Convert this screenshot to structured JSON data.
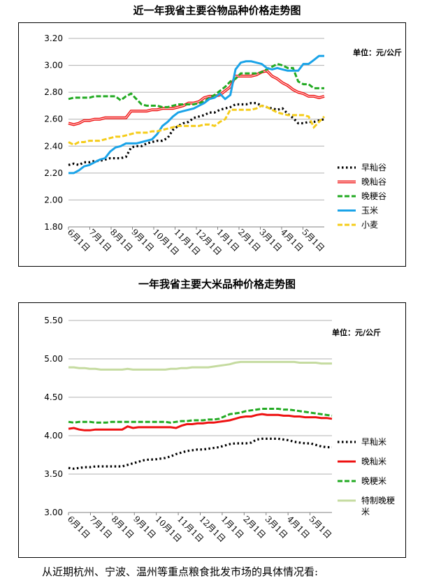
{
  "chart_data": [
    {
      "type": "line",
      "title": "近一年我省主要谷物品种价格走势图",
      "unit_label": "单位：元/公斤",
      "ylim": [
        1.8,
        3.2
      ],
      "yticks": [
        "3.20",
        "3.00",
        "2.80",
        "2.60",
        "2.40",
        "2.20",
        "2.00",
        "1.80"
      ],
      "x_labels": [
        "6月1日",
        "7月1日",
        "8月1日",
        "9月1日",
        "10月1日",
        "11月1日",
        "12月1日",
        "1月1日",
        "2月1日",
        "3月1日",
        "4月1日",
        "5月1日"
      ],
      "grid": true,
      "legend_position": "right",
      "series": [
        {
          "name": "早籼谷",
          "color": "#000000",
          "style": "dotted",
          "values": [
            2.26,
            2.27,
            2.26,
            2.28,
            2.28,
            2.29,
            2.29,
            2.3,
            2.31,
            2.31,
            2.31,
            2.32,
            2.39,
            2.4,
            2.4,
            2.42,
            2.43,
            2.44,
            2.44,
            2.46,
            2.52,
            2.55,
            2.57,
            2.58,
            2.61,
            2.62,
            2.63,
            2.65,
            2.65,
            2.67,
            2.68,
            2.69,
            2.71,
            2.71,
            2.71,
            2.72,
            2.72,
            2.7,
            2.69,
            2.68,
            2.67,
            2.68,
            2.64,
            2.61,
            2.57,
            2.57,
            2.58,
            2.58,
            2.59,
            2.6
          ]
        },
        {
          "name": "晚籼谷",
          "color": "#ee1111",
          "style": "solid-double",
          "values": [
            2.57,
            2.56,
            2.57,
            2.59,
            2.59,
            2.6,
            2.6,
            2.61,
            2.61,
            2.61,
            2.61,
            2.61,
            2.66,
            2.66,
            2.66,
            2.66,
            2.67,
            2.67,
            2.68,
            2.68,
            2.68,
            2.69,
            2.7,
            2.72,
            2.72,
            2.73,
            2.76,
            2.77,
            2.77,
            2.78,
            2.81,
            2.84,
            2.92,
            2.92,
            2.92,
            2.92,
            2.93,
            2.95,
            2.96,
            2.92,
            2.9,
            2.87,
            2.85,
            2.82,
            2.8,
            2.79,
            2.77,
            2.77,
            2.76,
            2.77
          ]
        },
        {
          "name": "晚粳谷",
          "color": "#22aa22",
          "style": "dashed",
          "values": [
            2.75,
            2.76,
            2.76,
            2.76,
            2.76,
            2.77,
            2.77,
            2.77,
            2.77,
            2.77,
            2.74,
            2.77,
            2.79,
            2.75,
            2.71,
            2.7,
            2.7,
            2.7,
            2.69,
            2.69,
            2.7,
            2.71,
            2.71,
            2.71,
            2.71,
            2.72,
            2.73,
            2.76,
            2.78,
            2.81,
            2.84,
            2.88,
            2.9,
            2.94,
            2.94,
            2.94,
            2.94,
            2.95,
            2.97,
            2.99,
            3.01,
            3.0,
            2.98,
            2.98,
            2.88,
            2.86,
            2.86,
            2.83,
            2.83,
            2.83
          ]
        },
        {
          "name": "玉米",
          "color": "#1aa3e8",
          "style": "solid",
          "values": [
            2.2,
            2.2,
            2.22,
            2.25,
            2.26,
            2.28,
            2.3,
            2.31,
            2.36,
            2.39,
            2.4,
            2.42,
            2.42,
            2.42,
            2.43,
            2.44,
            2.45,
            2.49,
            2.55,
            2.58,
            2.62,
            2.65,
            2.66,
            2.67,
            2.68,
            2.7,
            2.72,
            2.75,
            2.76,
            2.79,
            2.75,
            2.78,
            2.97,
            3.02,
            3.03,
            3.03,
            3.02,
            3.01,
            2.98,
            2.97,
            2.98,
            2.97,
            2.96,
            2.96,
            2.96,
            3.01,
            3.01,
            3.04,
            3.07,
            3.07
          ]
        },
        {
          "name": "小麦",
          "color": "#f5cc1a",
          "style": "dashed",
          "values": [
            2.43,
            2.41,
            2.43,
            2.43,
            2.44,
            2.44,
            2.44,
            2.45,
            2.46,
            2.47,
            2.47,
            2.48,
            2.49,
            2.5,
            2.5,
            2.5,
            2.51,
            2.51,
            2.52,
            2.53,
            2.54,
            2.55,
            2.55,
            2.55,
            2.55,
            2.55,
            2.56,
            2.56,
            2.55,
            2.58,
            2.6,
            2.67,
            2.67,
            2.67,
            2.67,
            2.67,
            2.68,
            2.7,
            2.69,
            2.67,
            2.65,
            2.64,
            2.63,
            2.63,
            2.63,
            2.63,
            2.62,
            2.54,
            2.58,
            2.62
          ]
        }
      ]
    },
    {
      "type": "line",
      "title": "一年我省主要大米品种价格走势图",
      "unit_label": "单位：元/公斤",
      "ylim": [
        3.0,
        5.5
      ],
      "yticks": [
        "5.50",
        "5.00",
        "4.50",
        "4.00",
        "3.50",
        "3.00"
      ],
      "x_labels": [
        "6月1日",
        "7月1日",
        "8月1日",
        "9月1日",
        "10月1日",
        "11月1日",
        "12月1日",
        "1月1日",
        "2月1日",
        "3月1日",
        "4月1日",
        "5月1日"
      ],
      "grid": true,
      "legend_position": "right",
      "series": [
        {
          "name": "早籼米",
          "color": "#000000",
          "style": "dotted",
          "values": [
            3.58,
            3.57,
            3.58,
            3.59,
            3.59,
            3.6,
            3.6,
            3.6,
            3.6,
            3.6,
            3.6,
            3.62,
            3.64,
            3.66,
            3.68,
            3.69,
            3.69,
            3.7,
            3.71,
            3.73,
            3.76,
            3.78,
            3.8,
            3.81,
            3.82,
            3.82,
            3.83,
            3.84,
            3.85,
            3.87,
            3.89,
            3.9,
            3.9,
            3.9,
            3.91,
            3.95,
            3.96,
            3.96,
            3.96,
            3.96,
            3.95,
            3.94,
            3.92,
            3.91,
            3.9,
            3.9,
            3.88,
            3.86,
            3.85,
            3.85
          ]
        },
        {
          "name": "晚籼米",
          "color": "#ee1111",
          "style": "solid",
          "values": [
            4.09,
            4.1,
            4.08,
            4.07,
            4.07,
            4.08,
            4.08,
            4.08,
            4.08,
            4.08,
            4.08,
            4.12,
            4.1,
            4.11,
            4.11,
            4.11,
            4.11,
            4.11,
            4.11,
            4.11,
            4.1,
            4.13,
            4.15,
            4.15,
            4.16,
            4.16,
            4.17,
            4.17,
            4.18,
            4.19,
            4.2,
            4.22,
            4.24,
            4.25,
            4.25,
            4.27,
            4.28,
            4.27,
            4.27,
            4.27,
            4.26,
            4.26,
            4.25,
            4.25,
            4.24,
            4.24,
            4.24,
            4.23,
            4.23,
            4.22
          ]
        },
        {
          "name": "晚粳米",
          "color": "#22aa22",
          "style": "dashed",
          "values": [
            4.18,
            4.17,
            4.18,
            4.18,
            4.18,
            4.17,
            4.17,
            4.17,
            4.18,
            4.18,
            4.18,
            4.18,
            4.18,
            4.18,
            4.18,
            4.18,
            4.18,
            4.18,
            4.18,
            4.17,
            4.18,
            4.19,
            4.19,
            4.2,
            4.2,
            4.2,
            4.21,
            4.21,
            4.22,
            4.25,
            4.28,
            4.29,
            4.3,
            4.32,
            4.33,
            4.34,
            4.35,
            4.35,
            4.35,
            4.35,
            4.34,
            4.34,
            4.33,
            4.32,
            4.31,
            4.3,
            4.29,
            4.28,
            4.27,
            4.26
          ]
        },
        {
          "name": "特制晚粳米",
          "color": "#c5dba0",
          "style": "solid",
          "values": [
            4.89,
            4.89,
            4.88,
            4.88,
            4.87,
            4.87,
            4.86,
            4.86,
            4.86,
            4.86,
            4.86,
            4.87,
            4.86,
            4.86,
            4.86,
            4.86,
            4.86,
            4.86,
            4.86,
            4.87,
            4.87,
            4.88,
            4.88,
            4.89,
            4.89,
            4.89,
            4.89,
            4.9,
            4.91,
            4.92,
            4.93,
            4.95,
            4.96,
            4.96,
            4.96,
            4.96,
            4.96,
            4.96,
            4.96,
            4.96,
            4.96,
            4.96,
            4.96,
            4.95,
            4.95,
            4.95,
            4.95,
            4.94,
            4.94,
            4.94
          ]
        }
      ]
    }
  ],
  "caption": "从近期杭州、宁波、温州等重点粮食批发市场的具体情况看:"
}
